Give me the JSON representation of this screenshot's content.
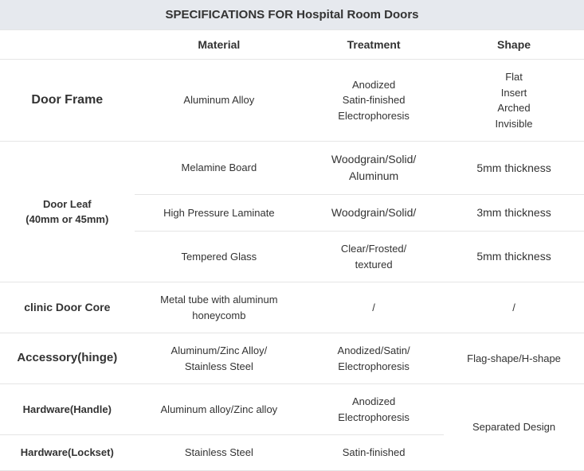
{
  "title": "SPECIFICATIONS FOR Hospital Room Doors",
  "headers": {
    "material": "Material",
    "treatment": "Treatment",
    "shape": "Shape"
  },
  "rows": {
    "doorFrame": {
      "label": "Door Frame",
      "material": "Aluminum Alloy",
      "treatment": [
        "Anodized",
        "Satin-finished",
        "Electrophoresis"
      ],
      "shape": [
        "Flat",
        "Insert",
        "Arched",
        "Invisible"
      ]
    },
    "doorLeaf": {
      "label": "Door Leaf\n(40mm or 45mm)",
      "sub": [
        {
          "material": "Melamine Board",
          "treatment": "Woodgrain/Solid/\nAluminum",
          "shape": "5mm thickness"
        },
        {
          "material": "High Pressure Laminate",
          "treatment": "Woodgrain/Solid/",
          "shape": "3mm thickness"
        },
        {
          "material": "Tempered Glass",
          "treatment": "Clear/Frosted/\ntextured",
          "shape": "5mm thickness"
        }
      ]
    },
    "core": {
      "label": "clinic Door Core",
      "material": "Metal tube with aluminum honeycomb",
      "treatment": "/",
      "shape": "/"
    },
    "hinge": {
      "label": "Accessory(hinge)",
      "material": "Aluminum/Zinc Alloy/\nStainless Steel",
      "treatment": "Anodized/Satin/\nElectrophoresis",
      "shape": "Flag-shape/H-shape"
    },
    "handle": {
      "label": "Hardware(Handle)",
      "material": "Aluminum alloy/Zinc alloy",
      "treatment": "Anodized\nElectrophoresis"
    },
    "lockset": {
      "label": "Hardware(Lockset)",
      "material": "Stainless Steel",
      "treatment": "Satin-finished",
      "shapeShared": "Separated Design"
    }
  }
}
